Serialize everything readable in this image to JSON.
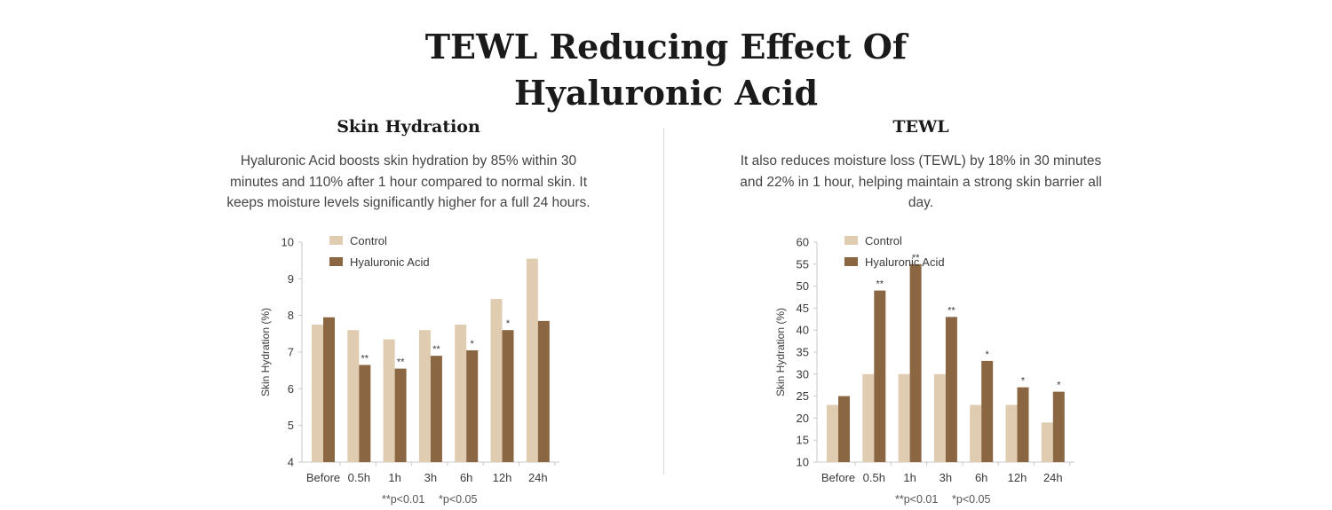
{
  "page": {
    "title_line1": "TEWL Reducing Effect Of",
    "title_line2": "Hyaluronic Acid"
  },
  "colors": {
    "control": "#e0cdb1",
    "hyaluronic": "#8b6642",
    "axis": "#c8c8c8",
    "text": "#3a3a3a"
  },
  "panels": [
    {
      "title": "Skin Hydration",
      "description": "Hyaluronic Acid boosts skin hydration by 85% within 30 minutes and 110% after 1 hour compared to normal skin. It keeps moisture levels significantly higher for a full 24 hours.",
      "note1": "**p<0.01",
      "note2": "*p<0.05"
    },
    {
      "title": "TEWL",
      "description": "It also reduces moisture loss (TEWL) by 18% in 30 minutes and 22% in 1 hour, helping maintain a strong skin barrier all day.",
      "note1": "**p<0.01",
      "note2": "*p<0.05"
    }
  ],
  "chart_data": [
    {
      "type": "bar",
      "categories": [
        "Before",
        "0.5h",
        "1h",
        "3h",
        "6h",
        "12h",
        "24h"
      ],
      "series": [
        {
          "name": "Control",
          "values": [
            7.75,
            7.6,
            7.35,
            7.6,
            7.75,
            8.45,
            9.55
          ]
        },
        {
          "name": "Hyaluronic Acid",
          "values": [
            7.95,
            6.65,
            6.55,
            6.9,
            7.05,
            7.6,
            7.85
          ]
        }
      ],
      "significance": [
        "",
        "**",
        "**",
        "**",
        "*",
        "*",
        ""
      ],
      "ylabel": "Skin Hydration (%)",
      "ylim": [
        4,
        10
      ],
      "yticks": [
        4,
        5,
        6,
        7,
        8,
        9,
        10
      ],
      "legend": "top-right"
    },
    {
      "type": "bar",
      "categories": [
        "Before",
        "0.5h",
        "1h",
        "3h",
        "6h",
        "12h",
        "24h"
      ],
      "series": [
        {
          "name": "Control",
          "values": [
            23,
            30,
            30,
            30,
            23,
            23,
            19
          ]
        },
        {
          "name": "Hyaluronic Acid",
          "values": [
            25,
            49,
            55,
            43,
            33,
            27,
            26
          ]
        }
      ],
      "significance": [
        "",
        "**",
        "**",
        "**",
        "*",
        "*",
        "*"
      ],
      "ylabel": "Skin Hydration (%)",
      "ylim": [
        10,
        60
      ],
      "yticks": [
        10,
        15,
        20,
        25,
        30,
        35,
        40,
        45,
        50,
        55,
        60
      ],
      "legend": "top-right"
    }
  ]
}
